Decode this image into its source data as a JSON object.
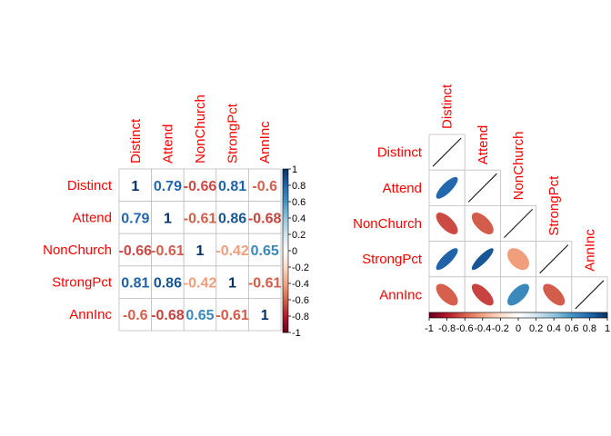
{
  "chart_data": [
    {
      "type": "heatmap",
      "variant": "correlation-matrix-numbers",
      "variables": [
        "Distinct",
        "Attend",
        "NonChurch",
        "StrongPct",
        "AnnInc"
      ],
      "matrix": [
        [
          1,
          0.79,
          -0.66,
          0.81,
          -0.6
        ],
        [
          0.79,
          1,
          -0.61,
          0.86,
          -0.68
        ],
        [
          -0.66,
          -0.61,
          1,
          -0.42,
          0.65
        ],
        [
          0.81,
          0.86,
          -0.42,
          1,
          -0.61
        ],
        [
          -0.6,
          -0.68,
          0.65,
          -0.61,
          1
        ]
      ],
      "value_labels": [
        [
          "1",
          "0.79",
          "-0.66",
          "0.81",
          "-0.6"
        ],
        [
          "0.79",
          "1",
          "-0.61",
          "0.86",
          "-0.68"
        ],
        [
          "-0.66",
          "-0.61",
          "1",
          "-0.42",
          "0.65"
        ],
        [
          "0.81",
          "0.86",
          "-0.42",
          "1",
          "-0.61"
        ],
        [
          "-0.6",
          "-0.68",
          "0.65",
          "-0.61",
          "1"
        ]
      ],
      "colorbar": {
        "orientation": "vertical",
        "range": [
          -1,
          1
        ],
        "tick_labels": [
          "1",
          "0.8",
          "0.6",
          "0.4",
          "0.2",
          "0",
          "-0.2",
          "-0.4",
          "-0.6",
          "-0.8",
          "-1"
        ]
      }
    },
    {
      "type": "heatmap",
      "variant": "correlation-matrix-ellipse-lower",
      "variables": [
        "Distinct",
        "Attend",
        "NonChurch",
        "StrongPct",
        "AnnInc"
      ],
      "matrix": [
        [
          1,
          0.79,
          -0.66,
          0.81,
          -0.6
        ],
        [
          0.79,
          1,
          -0.61,
          0.86,
          -0.68
        ],
        [
          -0.66,
          -0.61,
          1,
          -0.42,
          0.65
        ],
        [
          0.81,
          0.86,
          -0.42,
          1,
          -0.61
        ],
        [
          -0.6,
          -0.68,
          0.65,
          -0.61,
          1
        ]
      ],
      "colorbar": {
        "orientation": "horizontal",
        "range": [
          -1,
          1
        ],
        "tick_labels": [
          "-1",
          "-0.8",
          "-0.6",
          "-0.4",
          "-0.2",
          "0",
          "0.2",
          "0.4",
          "0.6",
          "0.8",
          "1"
        ]
      }
    }
  ],
  "colors": {
    "label": "#ff0000",
    "grid": "#bfbfbf",
    "scale": [
      "#67001F",
      "#B2182B",
      "#D6604D",
      "#F4A582",
      "#FDDBC7",
      "#FFFFFF",
      "#D1E5F0",
      "#92C5DE",
      "#4393C3",
      "#2166AC",
      "#053061"
    ]
  }
}
